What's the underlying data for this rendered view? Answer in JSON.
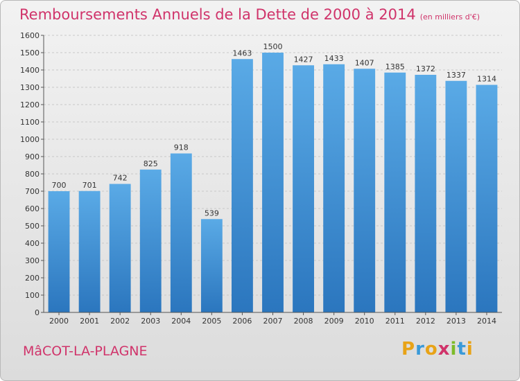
{
  "title": "Remboursements Annuels de la Dette de 2000 à 2014",
  "unit": "(en milliers d'€)",
  "commune": "MâCOT-LA-PLAGNE",
  "logo": {
    "letters": [
      "P",
      "r",
      "o",
      "x",
      "i",
      "t",
      "i"
    ],
    "colors": [
      "#e8a317",
      "#3a9ad9",
      "#e8a317",
      "#d0336a",
      "#7dbb2a",
      "#3a9ad9",
      "#e8a317"
    ]
  },
  "colors": {
    "bar": "#4f9fde",
    "bar_dark": "#2a78c2",
    "accent": "#d0336a"
  },
  "chart_data": {
    "type": "bar",
    "categories": [
      "2000",
      "2001",
      "2002",
      "2003",
      "2004",
      "2005",
      "2006",
      "2007",
      "2008",
      "2009",
      "2010",
      "2011",
      "2012",
      "2013",
      "2014"
    ],
    "values": [
      700,
      701,
      742,
      825,
      918,
      539,
      1463,
      1500,
      1427,
      1433,
      1407,
      1385,
      1372,
      1337,
      1314
    ],
    "ylim": [
      0,
      1600
    ],
    "yticks": [
      0,
      100,
      200,
      300,
      400,
      500,
      600,
      700,
      800,
      900,
      1000,
      1100,
      1200,
      1300,
      1400,
      1500,
      1600
    ],
    "grid": true,
    "title": "Remboursements Annuels de la Dette de 2000 à 2014",
    "xlabel": "",
    "ylabel": ""
  }
}
